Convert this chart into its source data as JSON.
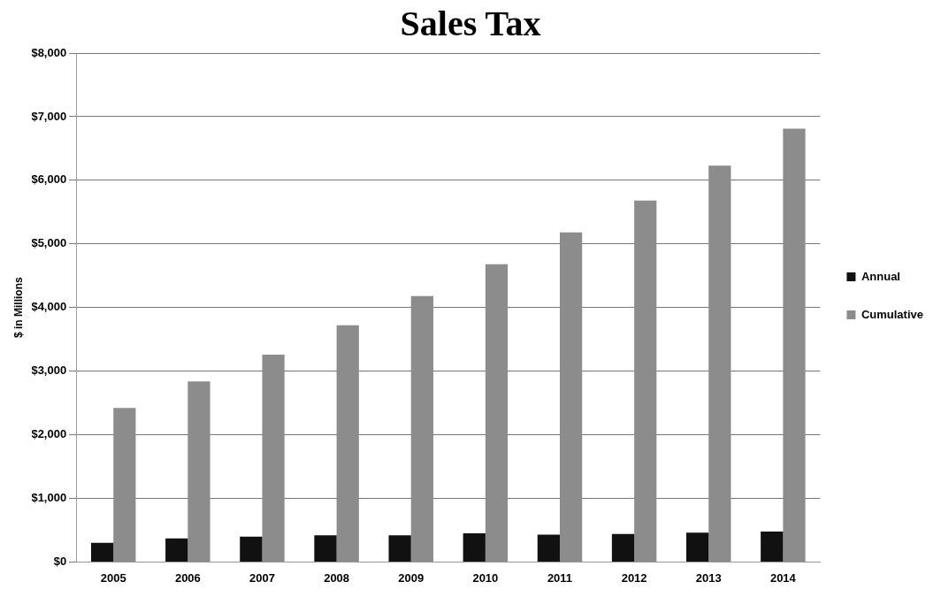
{
  "chart_data": {
    "type": "bar",
    "title": "Sales Tax",
    "ylabel": "$ in Millions",
    "categories": [
      "2005",
      "2006",
      "2007",
      "2008",
      "2009",
      "2010",
      "2011",
      "2012",
      "2013",
      "2014"
    ],
    "series": [
      {
        "name": "Annual",
        "color": "#111111",
        "values": [
          300,
          370,
          400,
          420,
          420,
          450,
          430,
          440,
          460,
          480
        ]
      },
      {
        "name": "Cumulative",
        "color": "#8c8c8c",
        "values": [
          2420,
          2840,
          3260,
          3720,
          4180,
          4680,
          5180,
          5680,
          6230,
          6810
        ]
      }
    ],
    "ylim": [
      0,
      8000
    ],
    "yticks": [
      {
        "value": 0,
        "label": "$0"
      },
      {
        "value": 1000,
        "label": "$1,000"
      },
      {
        "value": 2000,
        "label": "$2,000"
      },
      {
        "value": 3000,
        "label": "$3,000"
      },
      {
        "value": 4000,
        "label": "$4,000"
      },
      {
        "value": 5000,
        "label": "$5,000"
      },
      {
        "value": 6000,
        "label": "$6,000"
      },
      {
        "value": 7000,
        "label": "$7,000"
      },
      {
        "value": 8000,
        "label": "$8,000"
      }
    ],
    "grid": "y",
    "legend": "right"
  }
}
